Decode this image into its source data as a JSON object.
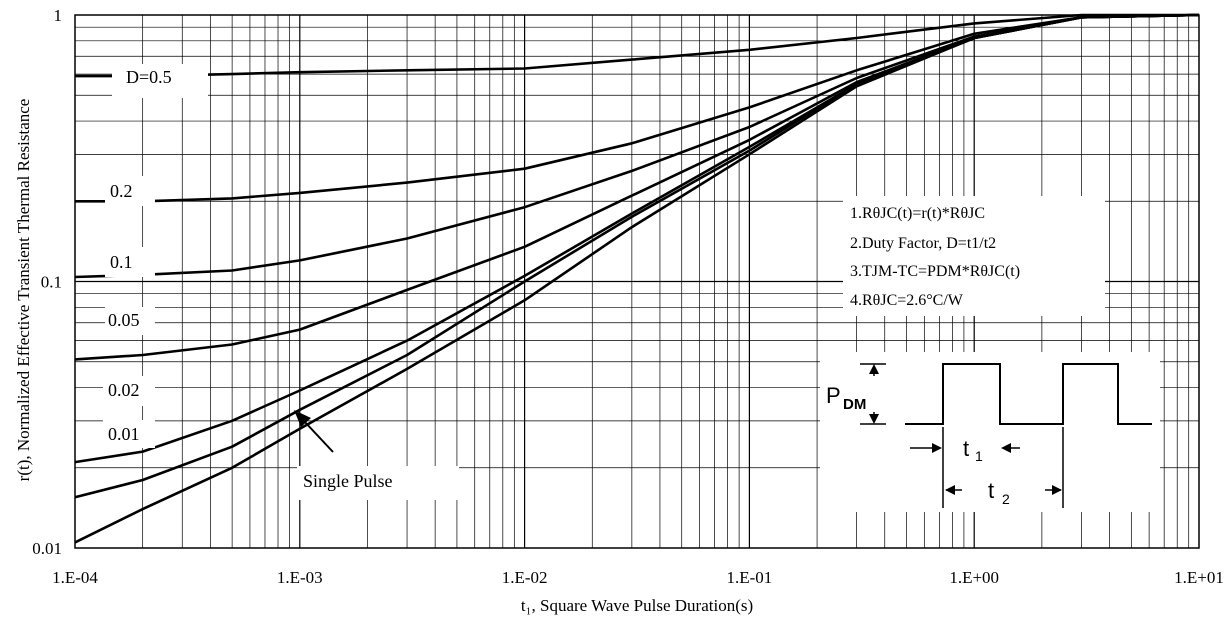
{
  "chart_data": {
    "type": "line",
    "title": "",
    "xlabel": "t₁, Square Wave Pulse Duration(s)",
    "ylabel": "r(t), Normalized Effective Transient Thermal Resistance",
    "xscale": "log",
    "yscale": "log",
    "xlim": [
      0.0001,
      10
    ],
    "ylim": [
      0.01,
      1
    ],
    "grid": true,
    "x_ticks": [
      0.0001,
      0.001,
      0.01,
      0.1,
      1,
      10
    ],
    "x_tick_labels": [
      "1.E-04",
      "1.E-03",
      "1.E-02",
      "1.E-01",
      "1.E+00",
      "1.E+01"
    ],
    "y_ticks": [
      0.01,
      0.1,
      1
    ],
    "y_tick_labels": [
      "0.01",
      "0.1",
      "1"
    ],
    "series": [
      {
        "name": "D=0.5",
        "x": [
          0.0001,
          0.0002,
          0.0005,
          0.001,
          0.003,
          0.01,
          0.03,
          0.1,
          0.3,
          1,
          3,
          10
        ],
        "y": [
          0.59,
          0.59,
          0.6,
          0.61,
          0.62,
          0.63,
          0.68,
          0.74,
          0.82,
          0.93,
          1.0,
          1.0
        ]
      },
      {
        "name": "0.2",
        "x": [
          0.0001,
          0.0002,
          0.0005,
          0.001,
          0.003,
          0.01,
          0.03,
          0.1,
          0.3,
          1,
          3,
          10
        ],
        "y": [
          0.2,
          0.2,
          0.205,
          0.215,
          0.235,
          0.265,
          0.33,
          0.45,
          0.62,
          0.85,
          0.98,
          1.0
        ]
      },
      {
        "name": "0.1",
        "x": [
          0.0001,
          0.0002,
          0.0005,
          0.001,
          0.003,
          0.01,
          0.03,
          0.1,
          0.3,
          1,
          3,
          10
        ],
        "y": [
          0.104,
          0.106,
          0.11,
          0.12,
          0.145,
          0.19,
          0.26,
          0.38,
          0.58,
          0.83,
          0.98,
          1.0
        ]
      },
      {
        "name": "0.05",
        "x": [
          0.0001,
          0.0002,
          0.0005,
          0.001,
          0.003,
          0.01,
          0.03,
          0.1,
          0.3,
          1,
          3,
          10
        ],
        "y": [
          0.051,
          0.053,
          0.058,
          0.066,
          0.093,
          0.135,
          0.21,
          0.34,
          0.56,
          0.82,
          0.98,
          1.0
        ]
      },
      {
        "name": "0.02",
        "x": [
          0.0001,
          0.0002,
          0.0005,
          0.001,
          0.003,
          0.01,
          0.03,
          0.1,
          0.3,
          1,
          3,
          10
        ],
        "y": [
          0.021,
          0.023,
          0.03,
          0.039,
          0.06,
          0.105,
          0.18,
          0.32,
          0.55,
          0.82,
          0.98,
          1.0
        ]
      },
      {
        "name": "0.01",
        "x": [
          0.0001,
          0.0002,
          0.0005,
          0.001,
          0.003,
          0.01,
          0.03,
          0.1,
          0.3,
          1,
          3,
          10
        ],
        "y": [
          0.0155,
          0.018,
          0.024,
          0.033,
          0.053,
          0.1,
          0.175,
          0.31,
          0.55,
          0.82,
          0.98,
          1.0
        ]
      },
      {
        "name": "Single Pulse",
        "x": [
          0.0001,
          0.0002,
          0.0005,
          0.001,
          0.003,
          0.01,
          0.03,
          0.1,
          0.3,
          1,
          3,
          10
        ],
        "y": [
          0.0105,
          0.014,
          0.02,
          0.028,
          0.047,
          0.085,
          0.16,
          0.3,
          0.54,
          0.82,
          0.98,
          1.0
        ]
      }
    ],
    "curve_labels": [
      "D=0.5",
      "0.2",
      "0.1",
      "0.05",
      "0.02",
      "0.01",
      "Single Pulse"
    ],
    "notes": [
      "1.RθJC(t)=r(t)*RθJC",
      "2.Duty Factor, D=t1/t2",
      "3.TJM-TC=PDM*RθJC(t)",
      "4.RθJC=2.6°C/W"
    ],
    "inset": {
      "pdm_label": "P",
      "pdm_sub": "DM",
      "t1_label": "t",
      "t1_sub": "1",
      "t2_label": "t",
      "t2_sub": "2"
    }
  }
}
